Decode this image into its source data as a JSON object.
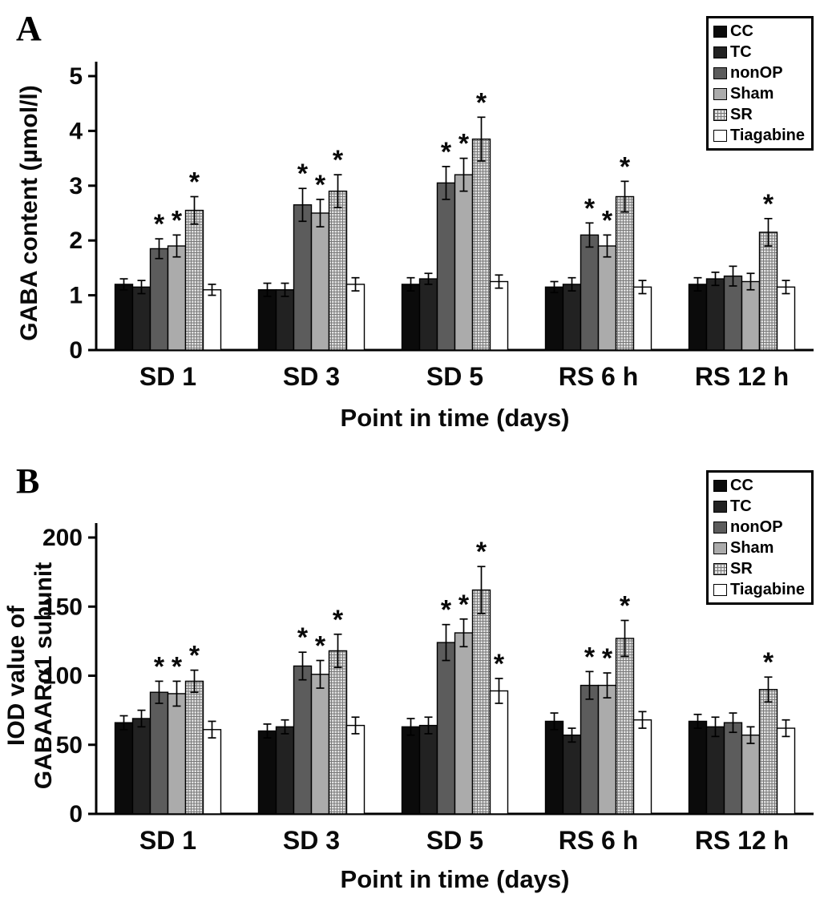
{
  "figure": {
    "background": "#ffffff",
    "legend": {
      "labels": [
        "CC",
        "TC",
        "nonOP",
        "Sham",
        "SR",
        "Tiagabine"
      ]
    },
    "series_styles": [
      {
        "name": "CC",
        "fill": "#0b0b0b",
        "pattern": false
      },
      {
        "name": "TC",
        "fill": "#222222",
        "pattern": false
      },
      {
        "name": "nonOP",
        "fill": "#5c5c5c",
        "pattern": false
      },
      {
        "name": "Sham",
        "fill": "#ababab",
        "pattern": false
      },
      {
        "name": "SR",
        "fill": "#e2e2e2",
        "pattern": true,
        "pattern_line": "#787878"
      },
      {
        "name": "Tiagabine",
        "fill": "#ffffff",
        "pattern": false
      }
    ],
    "chart_data": [
      {
        "type": "bar",
        "panel_label": "A",
        "xlabel": "Point in time (days)",
        "ylabel_lines": [
          "GABA content (µmol/l)"
        ],
        "ylim": [
          0,
          5
        ],
        "ytick_step": 1,
        "grid": false,
        "legend_position": "top-right",
        "categories": [
          "SD 1",
          "SD 3",
          "SD 5",
          "RS 6 h",
          "RS 12 h"
        ],
        "series": [
          {
            "name": "CC",
            "values": [
              1.2,
              1.1,
              1.2,
              1.15,
              1.2
            ],
            "errors": [
              0.1,
              0.12,
              0.12,
              0.1,
              0.12
            ],
            "sig": [
              0,
              0,
              0,
              0,
              0
            ]
          },
          {
            "name": "TC",
            "values": [
              1.15,
              1.1,
              1.3,
              1.2,
              1.3
            ],
            "errors": [
              0.12,
              0.12,
              0.1,
              0.12,
              0.12
            ],
            "sig": [
              0,
              0,
              0,
              0,
              0
            ]
          },
          {
            "name": "nonOP",
            "values": [
              1.85,
              2.65,
              3.05,
              2.1,
              1.35
            ],
            "errors": [
              0.18,
              0.3,
              0.3,
              0.22,
              0.18
            ],
            "sig": [
              1,
              1,
              1,
              1,
              0
            ]
          },
          {
            "name": "Sham",
            "values": [
              1.9,
              2.5,
              3.2,
              1.9,
              1.25
            ],
            "errors": [
              0.2,
              0.25,
              0.3,
              0.2,
              0.15
            ],
            "sig": [
              1,
              1,
              1,
              1,
              0
            ]
          },
          {
            "name": "SR",
            "values": [
              2.55,
              2.9,
              3.85,
              2.8,
              2.15
            ],
            "errors": [
              0.25,
              0.3,
              0.4,
              0.28,
              0.25
            ],
            "sig": [
              1,
              1,
              1,
              1,
              1
            ]
          },
          {
            "name": "Tiagabine",
            "values": [
              1.1,
              1.2,
              1.25,
              1.15,
              1.15
            ],
            "errors": [
              0.1,
              0.12,
              0.12,
              0.12,
              0.12
            ],
            "sig": [
              0,
              0,
              0,
              0,
              0
            ]
          }
        ]
      },
      {
        "type": "bar",
        "panel_label": "B",
        "xlabel": "Point in time (days)",
        "ylabel_lines": [
          "IOD value of",
          "GABAARα1 subunit"
        ],
        "ylim": [
          0,
          200
        ],
        "ytick_step": 50,
        "grid": false,
        "legend_position": "top-right",
        "categories": [
          "SD 1",
          "SD 3",
          "SD 5",
          "RS 6 h",
          "RS 12 h"
        ],
        "series": [
          {
            "name": "CC",
            "values": [
              66,
              60,
              63,
              67,
              67
            ],
            "errors": [
              5,
              5,
              6,
              6,
              5
            ],
            "sig": [
              0,
              0,
              0,
              0,
              0
            ]
          },
          {
            "name": "TC",
            "values": [
              69,
              63,
              64,
              57,
              63
            ],
            "errors": [
              6,
              5,
              6,
              5,
              7
            ],
            "sig": [
              0,
              0,
              0,
              0,
              0
            ]
          },
          {
            "name": "nonOP",
            "values": [
              88,
              107,
              124,
              93,
              66
            ],
            "errors": [
              8,
              10,
              13,
              10,
              7
            ],
            "sig": [
              1,
              1,
              1,
              1,
              0
            ]
          },
          {
            "name": "Sham",
            "values": [
              87,
              101,
              131,
              93,
              57
            ],
            "errors": [
              9,
              10,
              10,
              9,
              6
            ],
            "sig": [
              1,
              1,
              1,
              1,
              0
            ]
          },
          {
            "name": "SR",
            "values": [
              96,
              118,
              162,
              127,
              90
            ],
            "errors": [
              8,
              12,
              17,
              13,
              9
            ],
            "sig": [
              1,
              1,
              1,
              1,
              1
            ]
          },
          {
            "name": "Tiagabine",
            "values": [
              61,
              64,
              89,
              68,
              62
            ],
            "errors": [
              6,
              6,
              9,
              6,
              6
            ],
            "sig": [
              0,
              0,
              1,
              0,
              0
            ]
          }
        ]
      }
    ]
  }
}
